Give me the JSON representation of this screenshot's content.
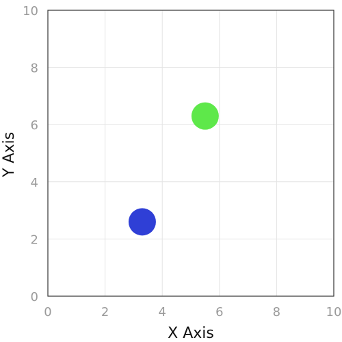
{
  "chart_data": {
    "type": "scatter",
    "title": "",
    "xlabel": "X Axis",
    "ylabel": "Y Axis",
    "xlim": [
      0,
      10
    ],
    "ylim": [
      0,
      10
    ],
    "xticks": [
      0,
      2,
      4,
      6,
      8,
      10
    ],
    "yticks": [
      0,
      2,
      4,
      6,
      8,
      10
    ],
    "grid": true,
    "points": [
      {
        "x": 3.3,
        "y": 2.6,
        "color": "#2f3fd6"
      },
      {
        "x": 5.5,
        "y": 6.3,
        "color": "#5ee84a"
      }
    ]
  }
}
